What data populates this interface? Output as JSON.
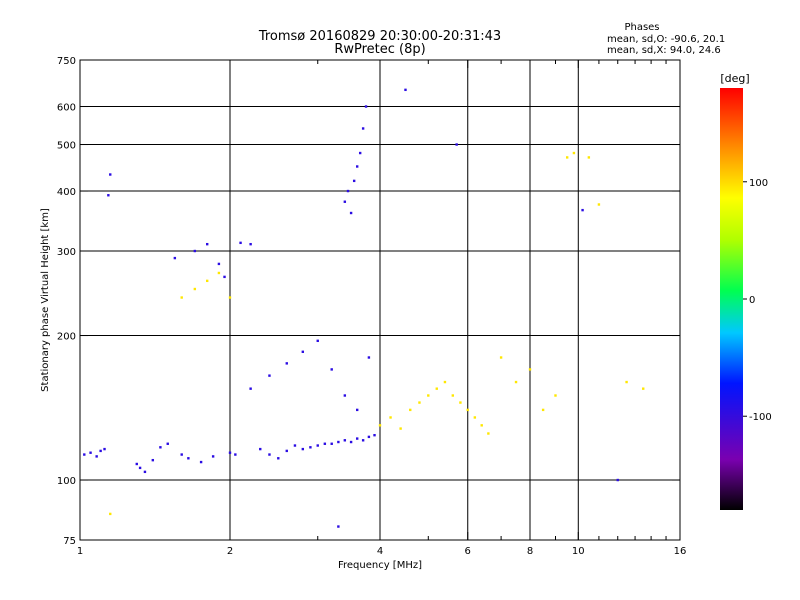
{
  "chart_data": {
    "type": "scatter",
    "title": "Tromsø 20160829 20:30:00-20:31:43",
    "subtitle": "RwPretec (8p)",
    "xlabel": "Frequency [MHz]",
    "ylabel": "Stationary phase Virtual Height [km]",
    "x_scale": "log",
    "y_scale": "log",
    "xlim": [
      1,
      16
    ],
    "ylim": [
      75,
      750
    ],
    "x_ticks": [
      1,
      2,
      4,
      6,
      8,
      10,
      16
    ],
    "x_minor_ticks": [
      3,
      5,
      7,
      9,
      11,
      12,
      13,
      14,
      15
    ],
    "y_ticks": [
      75,
      100,
      200,
      300,
      400,
      500,
      600,
      750
    ],
    "x_gridlines": [
      2,
      4,
      6,
      8,
      10
    ],
    "y_gridlines": [
      100,
      200,
      300,
      400,
      500,
      600
    ],
    "grid": true,
    "stats": {
      "heading": "Phases",
      "line_o": "mean, sd,O: -90.6, 20.1",
      "line_x": "mean, sd,X:  94.0, 24.6"
    },
    "colorbar": {
      "label": "[deg]",
      "range": [
        -180,
        180
      ],
      "ticks": [
        100,
        0,
        -100
      ],
      "colormap": "rainbow"
    },
    "series": [
      {
        "mode": "O",
        "phase_deg": -95,
        "points": [
          [
            1.02,
            113
          ],
          [
            1.05,
            114
          ],
          [
            1.08,
            112
          ],
          [
            1.1,
            115
          ],
          [
            1.12,
            116
          ],
          [
            1.14,
            392
          ],
          [
            1.15,
            433
          ],
          [
            1.3,
            108
          ],
          [
            1.32,
            106
          ],
          [
            1.35,
            104
          ],
          [
            1.4,
            110
          ],
          [
            1.45,
            117
          ],
          [
            1.5,
            119
          ],
          [
            1.55,
            290
          ],
          [
            1.6,
            113
          ],
          [
            1.65,
            111
          ],
          [
            1.7,
            300
          ],
          [
            1.75,
            109
          ],
          [
            1.8,
            310
          ],
          [
            1.85,
            112
          ],
          [
            1.9,
            282
          ],
          [
            1.95,
            265
          ],
          [
            2.0,
            114
          ],
          [
            2.05,
            113
          ],
          [
            2.1,
            312
          ],
          [
            2.2,
            310
          ],
          [
            2.3,
            116
          ],
          [
            2.4,
            113
          ],
          [
            2.5,
            111
          ],
          [
            2.6,
            115
          ],
          [
            2.7,
            118
          ],
          [
            2.8,
            116
          ],
          [
            2.9,
            117
          ],
          [
            3.0,
            118
          ],
          [
            3.1,
            119
          ],
          [
            3.2,
            119
          ],
          [
            3.3,
            120
          ],
          [
            3.4,
            121
          ],
          [
            3.5,
            120
          ],
          [
            3.6,
            122
          ],
          [
            3.7,
            121
          ],
          [
            3.8,
            123
          ],
          [
            3.9,
            124
          ],
          [
            3.3,
            80
          ],
          [
            3.4,
            380
          ],
          [
            3.45,
            400
          ],
          [
            3.5,
            360
          ],
          [
            3.55,
            420
          ],
          [
            3.6,
            450
          ],
          [
            3.65,
            480
          ],
          [
            3.7,
            540
          ],
          [
            3.75,
            600
          ],
          [
            2.2,
            155
          ],
          [
            2.4,
            165
          ],
          [
            2.6,
            175
          ],
          [
            2.8,
            185
          ],
          [
            3.0,
            195
          ],
          [
            3.2,
            170
          ],
          [
            3.4,
            150
          ],
          [
            3.6,
            140
          ],
          [
            3.8,
            180
          ],
          [
            4.5,
            650
          ],
          [
            5.7,
            500
          ],
          [
            10.2,
            365
          ],
          [
            12.0,
            100
          ]
        ]
      },
      {
        "mode": "X",
        "phase_deg": 95,
        "points": [
          [
            1.15,
            85
          ],
          [
            1.6,
            240
          ],
          [
            1.7,
            250
          ],
          [
            1.8,
            260
          ],
          [
            1.9,
            270
          ],
          [
            2.0,
            240
          ],
          [
            4.0,
            130
          ],
          [
            4.2,
            135
          ],
          [
            4.4,
            128
          ],
          [
            4.6,
            140
          ],
          [
            4.8,
            145
          ],
          [
            5.0,
            150
          ],
          [
            5.2,
            155
          ],
          [
            5.4,
            160
          ],
          [
            5.6,
            150
          ],
          [
            5.8,
            145
          ],
          [
            6.0,
            140
          ],
          [
            6.2,
            135
          ],
          [
            6.4,
            130
          ],
          [
            6.6,
            125
          ],
          [
            7.0,
            180
          ],
          [
            7.5,
            160
          ],
          [
            8.0,
            170
          ],
          [
            8.5,
            140
          ],
          [
            9.0,
            150
          ],
          [
            9.5,
            470
          ],
          [
            9.8,
            480
          ],
          [
            10.5,
            470
          ],
          [
            11.0,
            375
          ],
          [
            12.5,
            160
          ],
          [
            13.5,
            155
          ]
        ]
      }
    ]
  }
}
